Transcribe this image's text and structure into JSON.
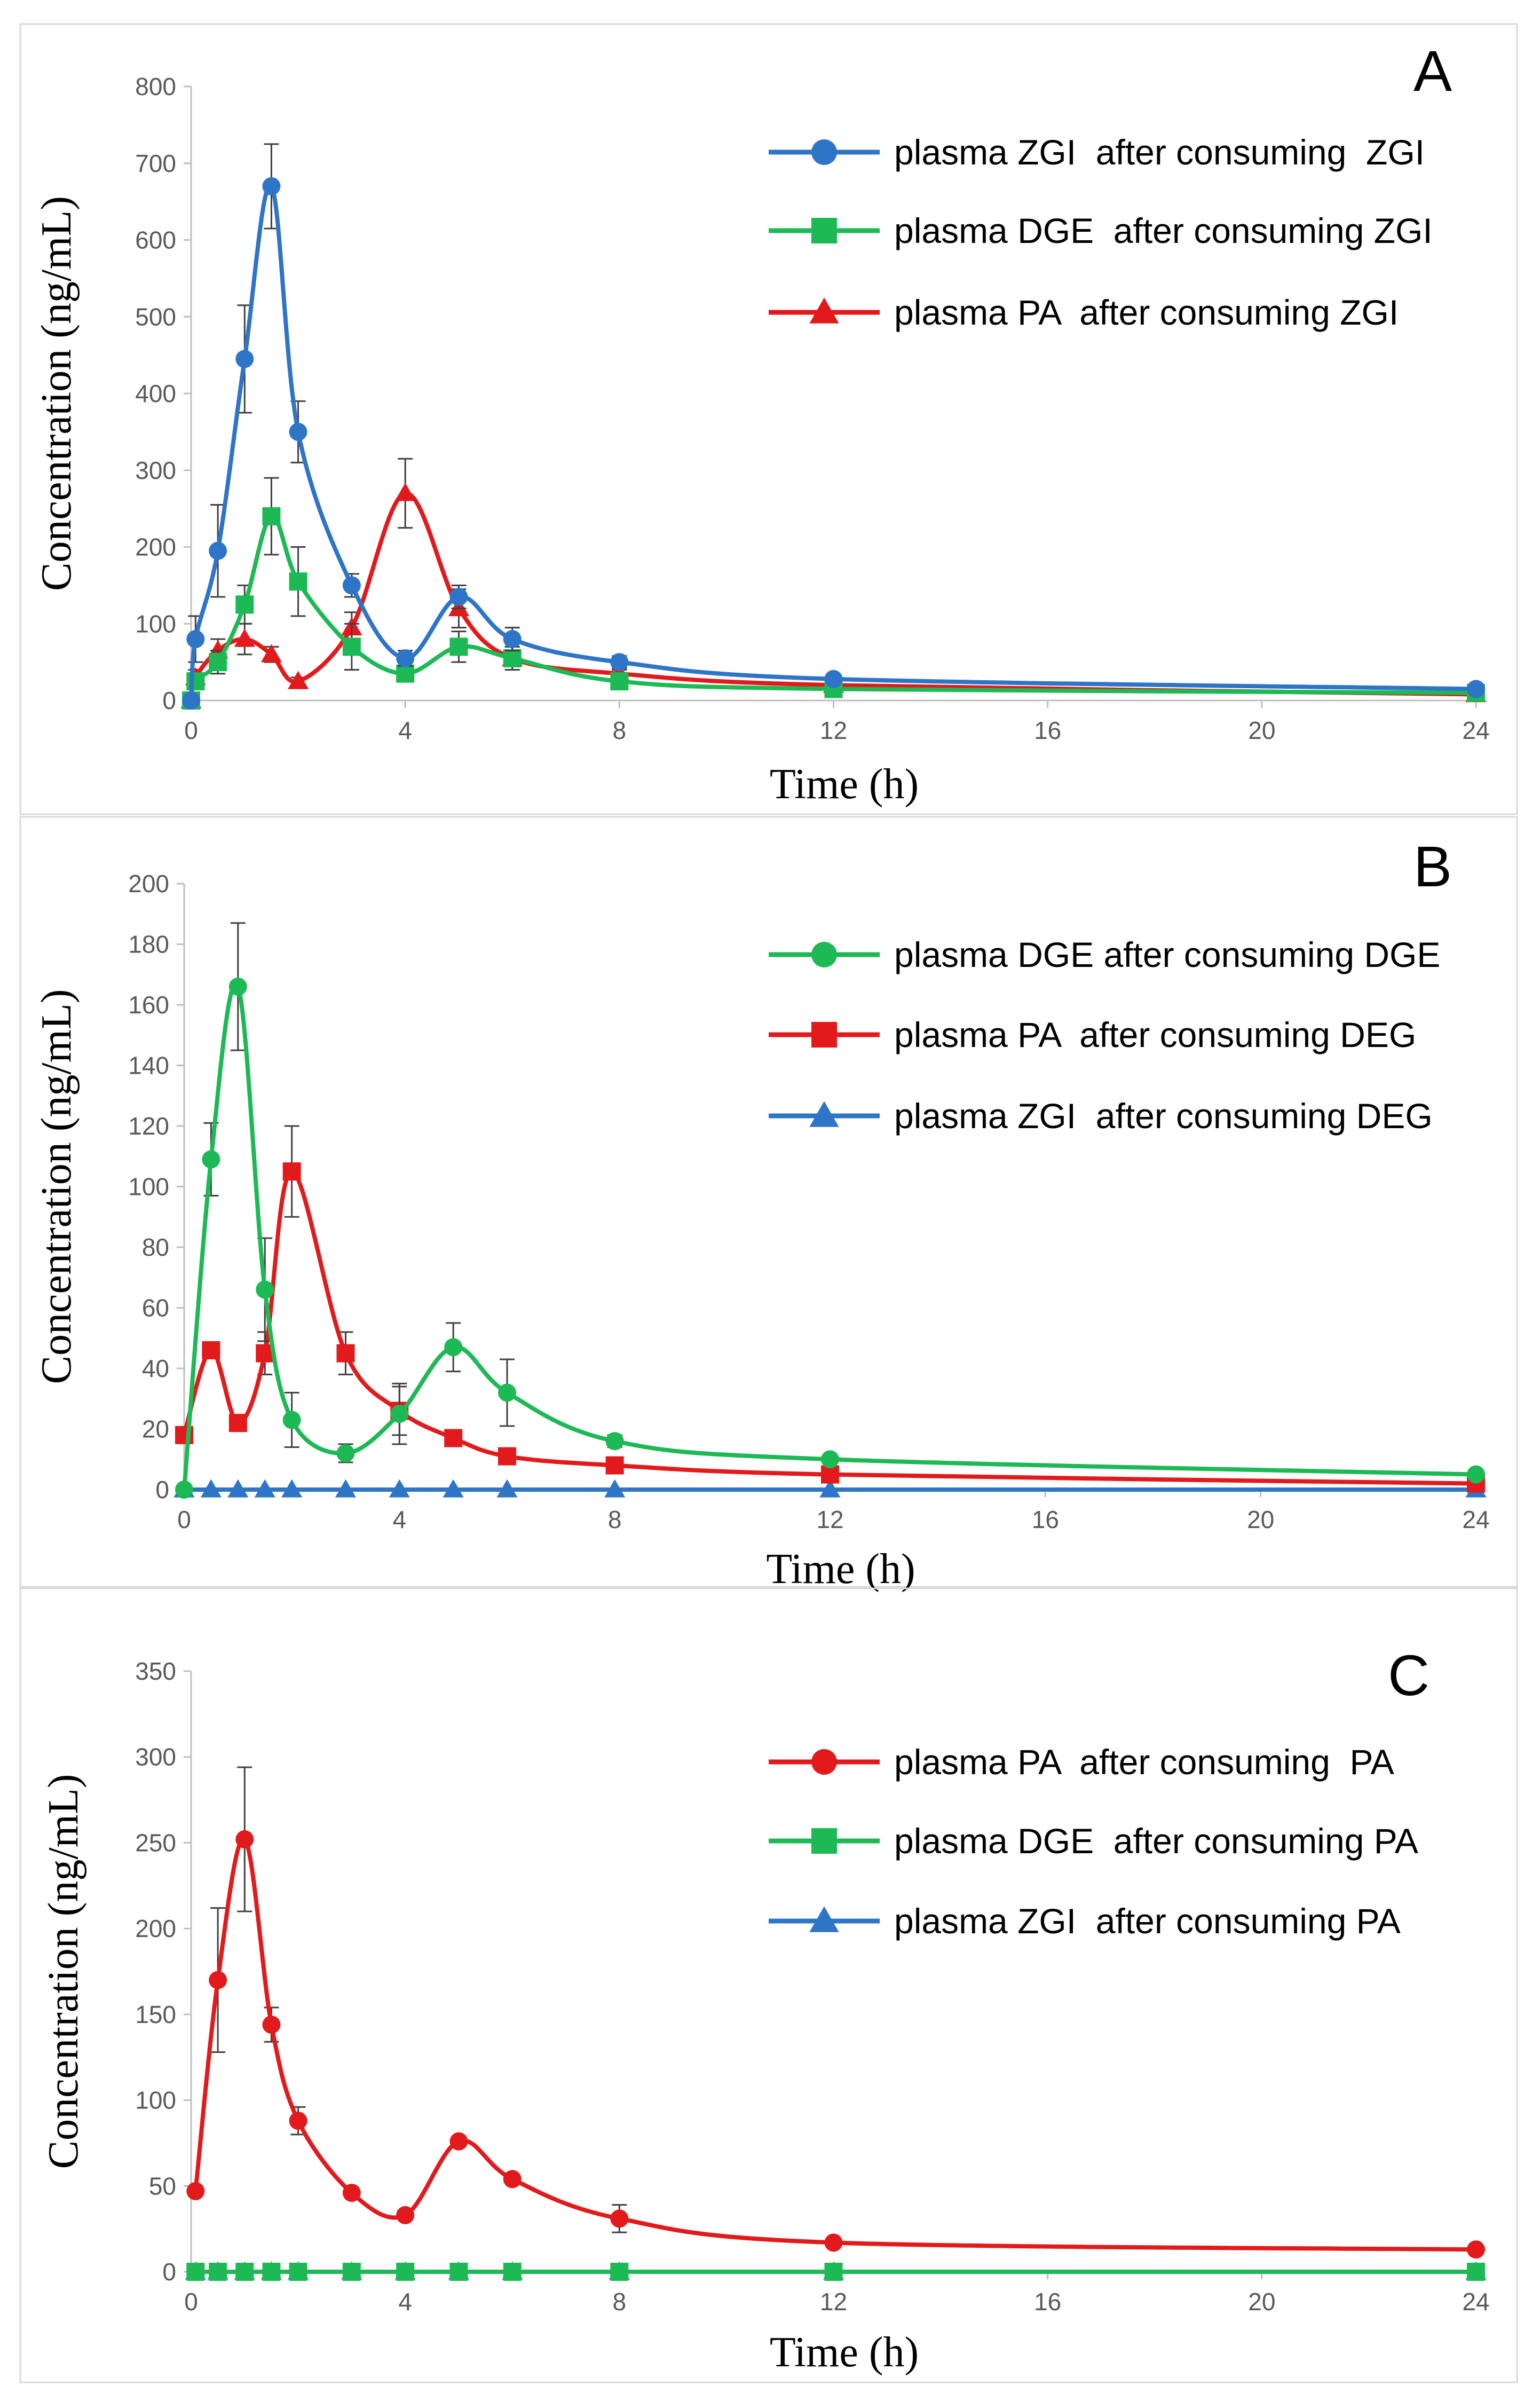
{
  "chart_data": [
    {
      "type": "line",
      "panel_label": "A",
      "xlabel": "Time (h)",
      "ylabel": "Concentration (ng/mL)",
      "xlim": [
        0,
        24
      ],
      "ylim": [
        0,
        800
      ],
      "xticks": [
        0,
        4,
        8,
        12,
        16,
        20,
        24
      ],
      "yticks": [
        0,
        100,
        200,
        300,
        400,
        500,
        600,
        700,
        800
      ],
      "x": [
        0,
        0.083,
        0.5,
        1,
        1.5,
        2,
        3,
        4,
        5,
        6,
        8,
        12,
        24
      ],
      "series": [
        {
          "name": "plasma ZGI  after consuming  ZGI",
          "color": "#2E75C8",
          "marker": "circle",
          "values": [
            0,
            80,
            195,
            445,
            670,
            350,
            150,
            55,
            135,
            80,
            50,
            28,
            15
          ],
          "errors": [
            0,
            30,
            60,
            70,
            55,
            40,
            15,
            10,
            15,
            15,
            8,
            0,
            0
          ]
        },
        {
          "name": "plasma DGE  after consuming ZGI",
          "color": "#1DB954",
          "marker": "square",
          "values": [
            0,
            25,
            50,
            125,
            240,
            155,
            70,
            35,
            70,
            55,
            25,
            15,
            10
          ],
          "errors": [
            0,
            10,
            15,
            25,
            50,
            45,
            30,
            10,
            20,
            15,
            5,
            0,
            0
          ]
        },
        {
          "name": "plasma PA  after consuming ZGI",
          "color": "#E31A1C",
          "marker": "triangle",
          "values": [
            0,
            30,
            65,
            80,
            60,
            25,
            95,
            270,
            120,
            55,
            35,
            20,
            8
          ],
          "errors": [
            0,
            10,
            15,
            20,
            10,
            5,
            20,
            45,
            25,
            15,
            5,
            0,
            0
          ]
        }
      ]
    },
    {
      "type": "line",
      "panel_label": "B",
      "xlabel": "Time (h)",
      "ylabel": "Concentration (ng/mL)",
      "xlim": [
        0,
        24
      ],
      "ylim": [
        0,
        200
      ],
      "xticks": [
        0,
        4,
        8,
        12,
        16,
        20,
        24
      ],
      "yticks": [
        0,
        20,
        40,
        60,
        80,
        100,
        120,
        140,
        160,
        180,
        200
      ],
      "x": [
        0,
        0.5,
        1,
        1.5,
        2,
        3,
        4,
        5,
        6,
        8,
        12,
        24
      ],
      "series": [
        {
          "name": "plasma DGE after consuming DGE",
          "color": "#1DB954",
          "marker": "circle",
          "values": [
            0,
            109,
            166,
            66,
            23,
            12,
            25,
            47,
            32,
            16,
            10,
            5
          ],
          "errors": [
            0,
            12,
            21,
            17,
            9,
            3,
            10,
            8,
            11,
            2,
            0,
            0
          ]
        },
        {
          "name": "plasma PA  after consuming DEG",
          "color": "#E31A1C",
          "marker": "square",
          "values": [
            18,
            46,
            22,
            45,
            105,
            45,
            26,
            17,
            11,
            8,
            5,
            2
          ],
          "errors": [
            0,
            0,
            0,
            7,
            15,
            7,
            8,
            2,
            0,
            0,
            0,
            0
          ]
        },
        {
          "name": "plasma ZGI  after consuming DEG",
          "color": "#2E75C8",
          "marker": "triangle",
          "values": [
            0,
            0,
            0,
            0,
            0,
            0,
            0,
            0,
            0,
            0,
            0,
            0
          ],
          "errors": [
            0,
            0,
            0,
            0,
            0,
            0,
            0,
            0,
            0,
            0,
            0,
            0
          ]
        }
      ]
    },
    {
      "type": "line",
      "panel_label": "C",
      "xlabel": "Time (h)",
      "ylabel": "Concentration (ng/mL)",
      "xlim": [
        0,
        24
      ],
      "ylim": [
        0,
        350
      ],
      "xticks": [
        0,
        4,
        8,
        12,
        16,
        20,
        24
      ],
      "yticks": [
        0,
        50,
        100,
        150,
        200,
        250,
        300,
        350
      ],
      "x": [
        0.083,
        0.5,
        1,
        1.5,
        2,
        3,
        4,
        5,
        6,
        8,
        12,
        24
      ],
      "series": [
        {
          "name": "plasma PA  after consuming  PA",
          "color": "#E31A1C",
          "marker": "circle",
          "values": [
            47,
            170,
            252,
            144,
            88,
            46,
            33,
            76,
            54,
            31,
            17,
            13
          ],
          "errors": [
            0,
            42,
            42,
            10,
            8,
            0,
            0,
            0,
            0,
            8,
            0,
            0
          ]
        },
        {
          "name": "plasma DGE  after consuming PA",
          "color": "#1DB954",
          "marker": "square",
          "values": [
            0,
            0,
            0,
            0,
            0,
            0,
            0,
            0,
            0,
            0,
            0,
            0
          ],
          "errors": [
            0,
            0,
            0,
            0,
            0,
            0,
            0,
            0,
            0,
            0,
            0,
            0
          ]
        },
        {
          "name": "plasma ZGI  after consuming PA",
          "color": "#2E75C8",
          "marker": "triangle",
          "values": [
            0,
            0,
            0,
            0,
            0,
            0,
            0,
            0,
            0,
            0,
            0,
            0
          ],
          "errors": [
            0,
            0,
            0,
            0,
            0,
            0,
            0,
            0,
            0,
            0,
            0,
            0
          ]
        }
      ]
    }
  ]
}
